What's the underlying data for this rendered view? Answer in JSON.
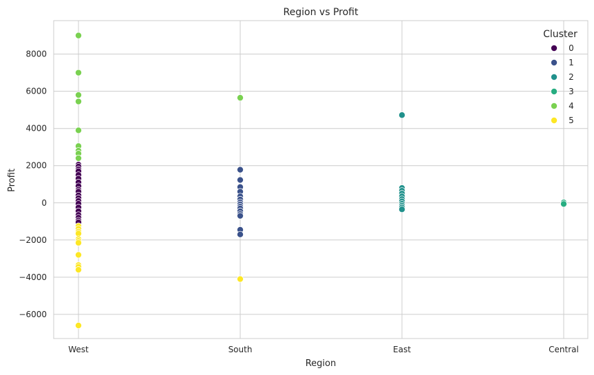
{
  "chart_data": {
    "type": "scatter",
    "title": "Region vs Profit",
    "xlabel": "Region",
    "ylabel": "Profit",
    "categories": [
      "West",
      "South",
      "East",
      "Central"
    ],
    "ylim": [
      -7300,
      9800
    ],
    "yticks": [
      -6000,
      -4000,
      -2000,
      0,
      2000,
      4000,
      6000,
      8000
    ],
    "ytick_labels": [
      "−6000",
      "−4000",
      "−2000",
      "0",
      "2000",
      "4000",
      "6000",
      "8000"
    ],
    "grid": true,
    "legend": {
      "title": "Cluster",
      "placement": "top-right"
    },
    "series": [
      {
        "name": "0",
        "color": "#440154",
        "points": [
          [
            "West",
            2050
          ],
          [
            "West",
            1950
          ],
          [
            "West",
            1800
          ],
          [
            "West",
            1700
          ],
          [
            "West",
            1500
          ],
          [
            "West",
            1300
          ],
          [
            "West",
            1100
          ],
          [
            "West",
            900
          ],
          [
            "West",
            700
          ],
          [
            "West",
            600
          ],
          [
            "West",
            400
          ],
          [
            "West",
            250
          ],
          [
            "West",
            100
          ],
          [
            "West",
            -50
          ],
          [
            "West",
            -250
          ],
          [
            "West",
            -450
          ],
          [
            "West",
            -650
          ],
          [
            "West",
            -800
          ],
          [
            "West",
            -950
          ],
          [
            "West",
            -1050
          ]
        ]
      },
      {
        "name": "1",
        "color": "#3b528b",
        "points": [
          [
            "South",
            1780
          ],
          [
            "South",
            1230
          ],
          [
            "South",
            850
          ],
          [
            "South",
            600
          ],
          [
            "South",
            350
          ],
          [
            "South",
            180
          ],
          [
            "South",
            30
          ],
          [
            "South",
            -80
          ],
          [
            "South",
            -200
          ],
          [
            "South",
            -300
          ],
          [
            "South",
            -450
          ],
          [
            "South",
            -600
          ],
          [
            "South",
            -700
          ],
          [
            "South",
            -1450
          ],
          [
            "South",
            -1700
          ]
        ]
      },
      {
        "name": "2",
        "color": "#21918c",
        "points": [
          [
            "East",
            4720
          ],
          [
            "East",
            800
          ],
          [
            "East",
            650
          ],
          [
            "East",
            500
          ],
          [
            "East",
            350
          ],
          [
            "East",
            200
          ],
          [
            "East",
            80
          ],
          [
            "East",
            -50
          ],
          [
            "East",
            -150
          ],
          [
            "East",
            -250
          ],
          [
            "East",
            -350
          ]
        ]
      },
      {
        "name": "3",
        "color": "#27ad81",
        "points": [
          [
            "Central",
            20
          ],
          [
            "Central",
            -60
          ]
        ]
      },
      {
        "name": "4",
        "color": "#7ad151",
        "points": [
          [
            "West",
            9000
          ],
          [
            "West",
            7000
          ],
          [
            "West",
            5800
          ],
          [
            "West",
            5450
          ],
          [
            "West",
            3900
          ],
          [
            "West",
            3050
          ],
          [
            "West",
            2800
          ],
          [
            "West",
            2650
          ],
          [
            "West",
            2400
          ],
          [
            "South",
            5650
          ]
        ]
      },
      {
        "name": "5",
        "color": "#fde725",
        "points": [
          [
            "West",
            -1250
          ],
          [
            "West",
            -1400
          ],
          [
            "West",
            -1550
          ],
          [
            "West",
            -1650
          ],
          [
            "West",
            -1950
          ],
          [
            "West",
            -2050
          ],
          [
            "West",
            -2150
          ],
          [
            "West",
            -2800
          ],
          [
            "West",
            -3350
          ],
          [
            "West",
            -3450
          ],
          [
            "West",
            -3600
          ],
          [
            "West",
            -6600
          ],
          [
            "South",
            -4100
          ]
        ]
      }
    ]
  }
}
